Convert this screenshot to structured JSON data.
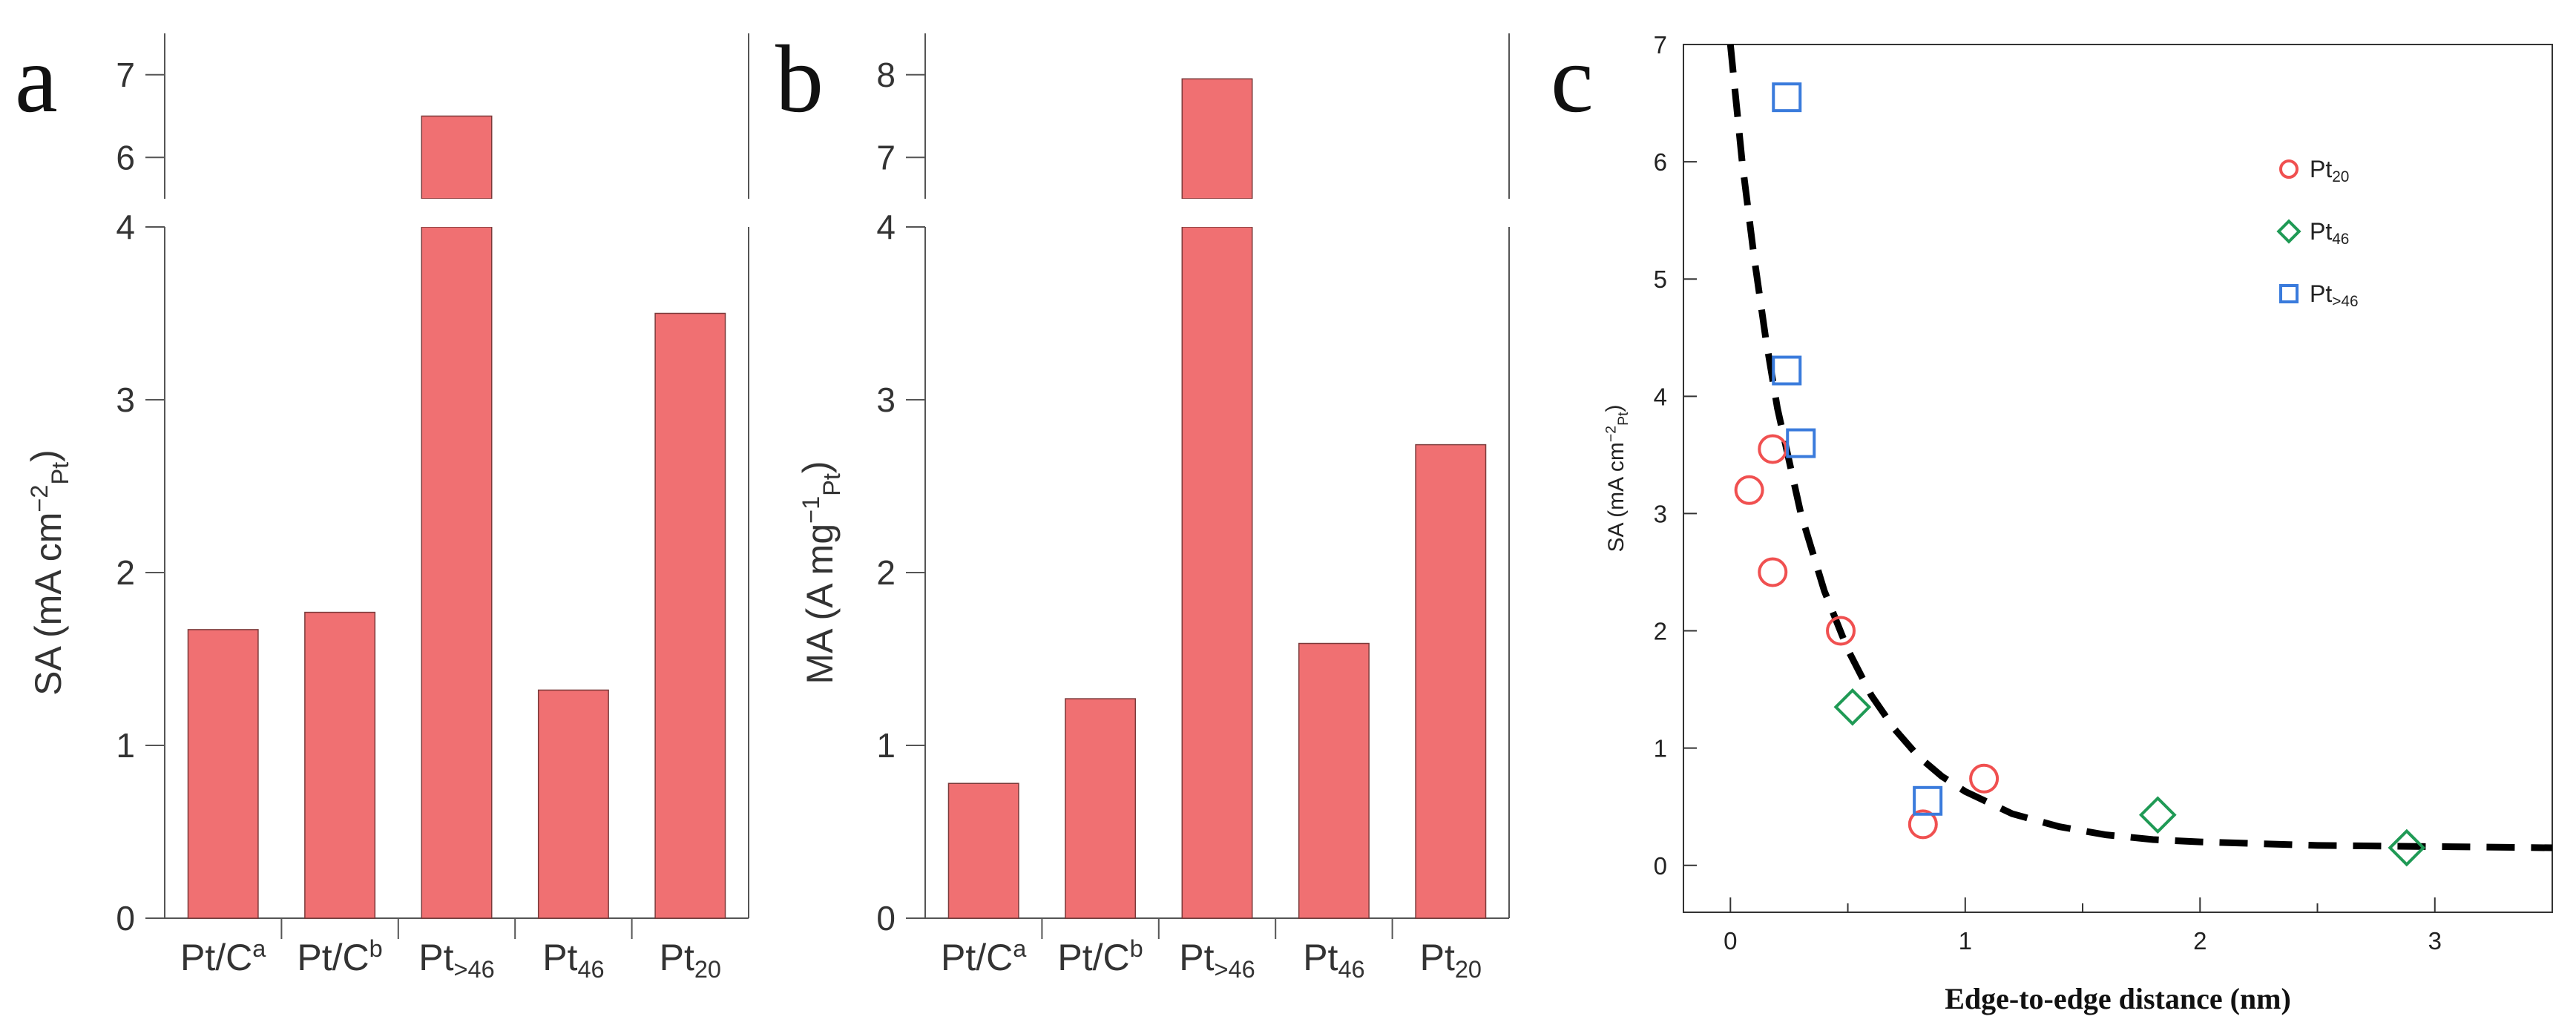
{
  "chart_data": [
    {
      "panel": "a",
      "type": "bar",
      "ylabel": "SA (mA cm<sup>−2</sup><sub>Pt</sub>)",
      "categories": [
        "Pt/C<sup>a</sup>",
        "Pt/C<sup>b</sup>",
        "Pt<sub>>46</sub>",
        "Pt<sub>46</sub>",
        "Pt<sub>20</sub>"
      ],
      "values": [
        1.67,
        1.77,
        6.5,
        1.32,
        3.5
      ],
      "ylim_lower": [
        0,
        4
      ],
      "ylim_upper": [
        5.5,
        7.5
      ],
      "yticks_lower": [
        "0",
        "1",
        "2",
        "3",
        "4"
      ],
      "yticks_upper": [
        "6",
        "7"
      ],
      "bar_color": "#f07072"
    },
    {
      "panel": "b",
      "type": "bar",
      "ylabel": "MA (A mg<sup>−1</sup><sub>Pt</sub>)",
      "categories": [
        "Pt/C<sup>a</sup>",
        "Pt/C<sup>b</sup>",
        "Pt<sub>>46</sub>",
        "Pt<sub>46</sub>",
        "Pt<sub>20</sub>"
      ],
      "values": [
        0.78,
        1.27,
        7.95,
        1.59,
        2.74
      ],
      "ylim_lower": [
        0,
        4
      ],
      "ylim_upper": [
        6.5,
        8.5
      ],
      "yticks_lower": [
        "0",
        "1",
        "2",
        "3",
        "4"
      ],
      "yticks_upper": [
        "7",
        "8"
      ],
      "bar_color": "#f07072"
    },
    {
      "panel": "c",
      "type": "scatter",
      "xlabel": "Edge-to-edge distance (nm)",
      "ylabel": "SA (mA cm<sup>−2</sup><sub>Pt</sub>)",
      "xlim": [
        -0.2,
        3.5
      ],
      "ylim": [
        -0.4,
        7.0
      ],
      "xticks": [
        "0",
        "1",
        "2",
        "3"
      ],
      "yticks": [
        "0",
        "1",
        "2",
        "3",
        "4",
        "5",
        "6",
        "7"
      ],
      "series": [
        {
          "name": "Pt<sub>20</sub>",
          "marker": "circle",
          "color": "#f05050",
          "x": [
            0.08,
            0.18,
            0.18,
            0.47,
            0.82,
            1.08
          ],
          "y": [
            3.2,
            3.55,
            2.5,
            2.0,
            0.35,
            0.74
          ]
        },
        {
          "name": "Pt<sub>46</sub>",
          "marker": "diamond",
          "color": "#1f9a55",
          "x": [
            0.52,
            1.82,
            2.88
          ],
          "y": [
            1.35,
            0.43,
            0.15
          ]
        },
        {
          "name": "Pt<sub>>46</sub>",
          "marker": "square",
          "color": "#3a7bdc",
          "x": [
            0.24,
            0.24,
            0.3,
            0.84
          ],
          "y": [
            6.55,
            4.22,
            3.6,
            0.55
          ]
        }
      ],
      "fit_curve": {
        "style": "dashed",
        "color": "#000000",
        "x": [
          0.0,
          0.05,
          0.1,
          0.15,
          0.2,
          0.3,
          0.4,
          0.5,
          0.6,
          0.7,
          0.8,
          0.9,
          1.0,
          1.2,
          1.4,
          1.6,
          1.8,
          2.0,
          2.5,
          3.0,
          3.5
        ],
        "y": [
          7.0,
          6.0,
          5.2,
          4.5,
          3.9,
          3.0,
          2.34,
          1.84,
          1.45,
          1.16,
          0.93,
          0.76,
          0.63,
          0.44,
          0.33,
          0.26,
          0.22,
          0.2,
          0.17,
          0.16,
          0.15
        ]
      }
    }
  ]
}
